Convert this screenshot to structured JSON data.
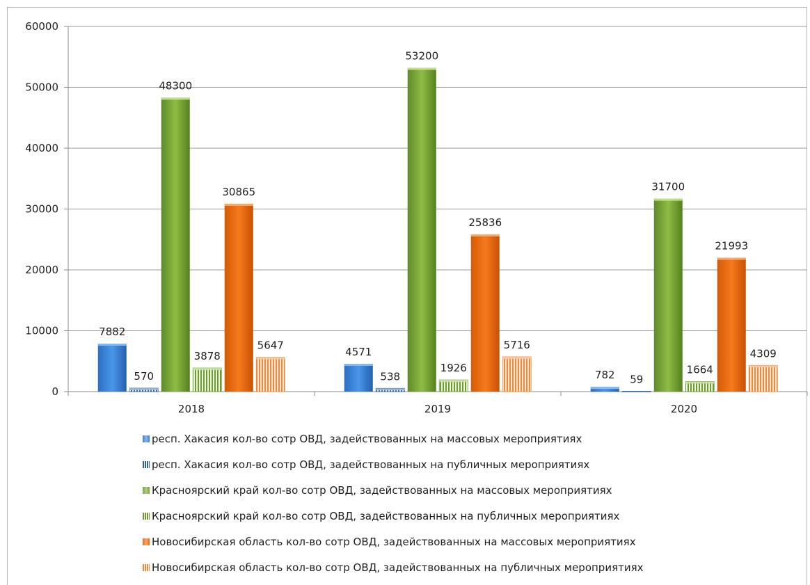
{
  "chart_data": {
    "type": "bar",
    "categories": [
      "2018",
      "2019",
      "2020"
    ],
    "ylim": [
      0,
      60000
    ],
    "yticks": [
      0,
      10000,
      20000,
      30000,
      40000,
      50000,
      60000
    ],
    "grid": true,
    "legend_position": "bottom",
    "series": [
      {
        "name": "респ. Хакасия кол-во сотр ОВД, задействованных на массовых мероприятиях",
        "values": [
          7882,
          4571,
          782
        ],
        "color": "#3b82d6",
        "pattern": "solid"
      },
      {
        "name": "респ. Хакасия кол-во сотр ОВД, задействованных на публичных мероприятиях",
        "values": [
          570,
          538,
          59
        ],
        "color": "#2f5f9e",
        "pattern": "stripes"
      },
      {
        "name": "Красноярский край кол-во сотр ОВД, задействованных на массовых мероприятиях",
        "values": [
          48300,
          53200,
          31700
        ],
        "color": "#7ba83a",
        "pattern": "solid"
      },
      {
        "name": "Красноярский край кол-во сотр ОВД, задействованных на публичных мероприятиях",
        "values": [
          3878,
          1926,
          1664
        ],
        "color": "#6f9a32",
        "pattern": "stripes"
      },
      {
        "name": "Новосибирская область кол-во сотр ОВД, задействованных на массовых мероприятиях",
        "values": [
          30865,
          25836,
          21993
        ],
        "color": "#ef6c0f",
        "pattern": "solid"
      },
      {
        "name": "Новосибирская область кол-во сотр ОВД, задействованных на публичных мероприятиях",
        "values": [
          5647,
          5716,
          4309
        ],
        "color": "#f08a3a",
        "pattern": "stripes"
      }
    ]
  }
}
